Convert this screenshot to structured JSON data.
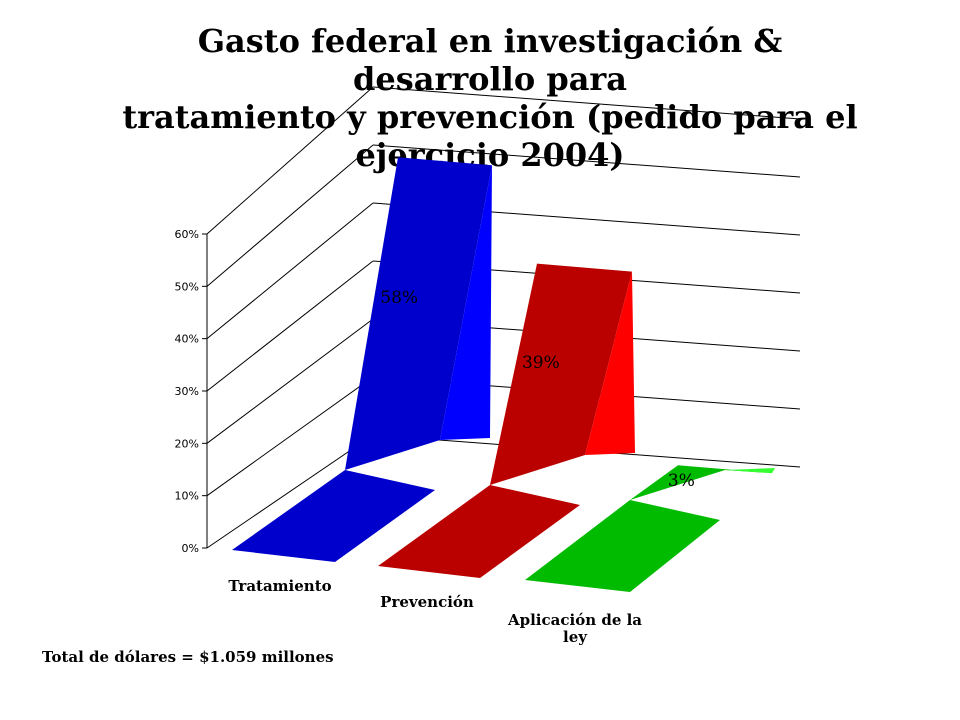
{
  "title_lines": [
    "Gasto federal en investigación & desarrollo para",
    "tratamiento y prevención (pedido para el",
    "ejercicio 2004)"
  ],
  "footer": "Total de dólares = $1.059 millones",
  "chart_data": {
    "type": "bar",
    "subtype": "3d-ribbon",
    "title": "Gasto federal en investigación & desarrollo para tratamiento y prevención (pedido para el ejercicio 2004)",
    "categories": [
      "Tratamiento",
      "Prevención",
      "Aplicación de la ley"
    ],
    "category_label_lines": [
      [
        "Tratamiento"
      ],
      [
        "Prevención"
      ],
      [
        "Aplicación de la",
        "ley"
      ]
    ],
    "values": [
      58,
      39,
      3
    ],
    "data_labels": [
      "58%",
      "39%",
      "3%"
    ],
    "colors": [
      "#0000cc",
      "#bb0000",
      "#00bb00"
    ],
    "side_colors": [
      "#0000ff",
      "#ff0000",
      "#33ff33"
    ],
    "ylim": [
      0,
      60
    ],
    "yticks": [
      "0%",
      "10%",
      "20%",
      "30%",
      "40%",
      "50%",
      "60%"
    ],
    "grid": true,
    "xlabel": "",
    "ylabel": ""
  }
}
